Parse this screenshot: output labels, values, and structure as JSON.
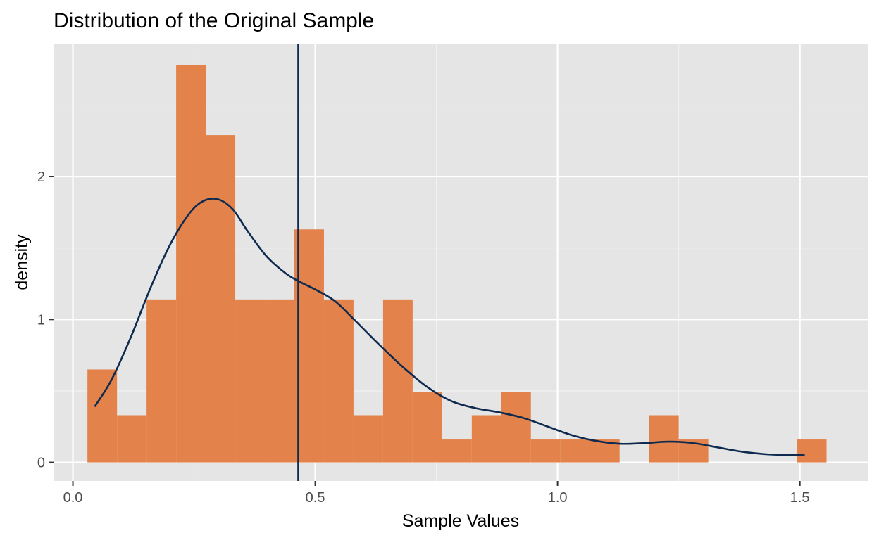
{
  "chart_data": {
    "type": "histogram",
    "title": "Distribution of the Original Sample",
    "xlabel": "Sample Values",
    "ylabel": "density",
    "xlim": [
      -0.04,
      1.64
    ],
    "ylim": [
      -0.13,
      2.93
    ],
    "x_ticks": [
      {
        "value": 0.0,
        "label": "0.0"
      },
      {
        "value": 0.5,
        "label": "0.5"
      },
      {
        "value": 1.0,
        "label": "1.0"
      },
      {
        "value": 1.5,
        "label": "1.5"
      }
    ],
    "y_ticks": [
      {
        "value": 0,
        "label": "0"
      },
      {
        "value": 1,
        "label": "1"
      },
      {
        "value": 2,
        "label": "2"
      }
    ],
    "grid": true,
    "panel_background": "#e5e5e5",
    "bar_color": "#e3834b",
    "line_color": "#0e2a4f",
    "bins": [
      {
        "x0": 0.03,
        "x1": 0.091,
        "density": 0.65
      },
      {
        "x0": 0.091,
        "x1": 0.152,
        "density": 0.33
      },
      {
        "x0": 0.152,
        "x1": 0.213,
        "density": 1.14
      },
      {
        "x0": 0.213,
        "x1": 0.274,
        "density": 2.78
      },
      {
        "x0": 0.274,
        "x1": 0.335,
        "density": 2.29
      },
      {
        "x0": 0.335,
        "x1": 0.396,
        "density": 1.14
      },
      {
        "x0": 0.396,
        "x1": 0.457,
        "density": 1.14
      },
      {
        "x0": 0.457,
        "x1": 0.518,
        "density": 1.63
      },
      {
        "x0": 0.518,
        "x1": 0.579,
        "density": 1.14
      },
      {
        "x0": 0.579,
        "x1": 0.64,
        "density": 0.33
      },
      {
        "x0": 0.64,
        "x1": 0.701,
        "density": 1.14
      },
      {
        "x0": 0.701,
        "x1": 0.762,
        "density": 0.49
      },
      {
        "x0": 0.762,
        "x1": 0.823,
        "density": 0.16
      },
      {
        "x0": 0.823,
        "x1": 0.884,
        "density": 0.33
      },
      {
        "x0": 0.884,
        "x1": 0.945,
        "density": 0.49
      },
      {
        "x0": 0.945,
        "x1": 1.006,
        "density": 0.16
      },
      {
        "x0": 1.006,
        "x1": 1.067,
        "density": 0.16
      },
      {
        "x0": 1.067,
        "x1": 1.128,
        "density": 0.16
      },
      {
        "x0": 1.128,
        "x1": 1.189,
        "density": 0.0
      },
      {
        "x0": 1.189,
        "x1": 1.25,
        "density": 0.33
      },
      {
        "x0": 1.25,
        "x1": 1.311,
        "density": 0.16
      },
      {
        "x0": 1.311,
        "x1": 1.372,
        "density": 0.0
      },
      {
        "x0": 1.372,
        "x1": 1.433,
        "density": 0.0
      },
      {
        "x0": 1.433,
        "x1": 1.494,
        "density": 0.0
      },
      {
        "x0": 1.494,
        "x1": 1.555,
        "density": 0.16
      }
    ],
    "density_curve": [
      {
        "x": 0.045,
        "y": 0.39
      },
      {
        "x": 0.08,
        "y": 0.58
      },
      {
        "x": 0.12,
        "y": 0.88
      },
      {
        "x": 0.16,
        "y": 1.22
      },
      {
        "x": 0.2,
        "y": 1.52
      },
      {
        "x": 0.24,
        "y": 1.74
      },
      {
        "x": 0.27,
        "y": 1.83
      },
      {
        "x": 0.3,
        "y": 1.84
      },
      {
        "x": 0.33,
        "y": 1.77
      },
      {
        "x": 0.36,
        "y": 1.62
      },
      {
        "x": 0.4,
        "y": 1.44
      },
      {
        "x": 0.44,
        "y": 1.32
      },
      {
        "x": 0.47,
        "y": 1.26
      },
      {
        "x": 0.5,
        "y": 1.21
      },
      {
        "x": 0.54,
        "y": 1.13
      },
      {
        "x": 0.58,
        "y": 1.0
      },
      {
        "x": 0.63,
        "y": 0.83
      },
      {
        "x": 0.68,
        "y": 0.67
      },
      {
        "x": 0.73,
        "y": 0.53
      },
      {
        "x": 0.78,
        "y": 0.43
      },
      {
        "x": 0.83,
        "y": 0.38
      },
      {
        "x": 0.88,
        "y": 0.35
      },
      {
        "x": 0.93,
        "y": 0.31
      },
      {
        "x": 0.98,
        "y": 0.25
      },
      {
        "x": 1.03,
        "y": 0.19
      },
      {
        "x": 1.08,
        "y": 0.15
      },
      {
        "x": 1.13,
        "y": 0.13
      },
      {
        "x": 1.18,
        "y": 0.135
      },
      {
        "x": 1.23,
        "y": 0.145
      },
      {
        "x": 1.28,
        "y": 0.135
      },
      {
        "x": 1.33,
        "y": 0.105
      },
      {
        "x": 1.38,
        "y": 0.075
      },
      {
        "x": 1.43,
        "y": 0.057
      },
      {
        "x": 1.47,
        "y": 0.052
      },
      {
        "x": 1.51,
        "y": 0.05
      }
    ],
    "mean_line": {
      "x": 0.465
    }
  }
}
